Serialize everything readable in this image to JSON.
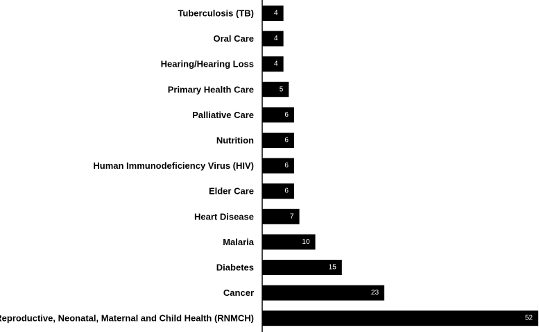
{
  "chart_data": {
    "type": "bar",
    "orientation": "horizontal",
    "categories": [
      "Tuberculosis (TB)",
      "Oral Care",
      "Hearing/Hearing Loss",
      "Primary Health Care",
      "Palliative Care",
      "Nutrition",
      "Human Immunodeficiency Virus (HIV)",
      "Elder Care",
      "Heart Disease",
      "Malaria",
      "Diabetes",
      "Cancer",
      "Reproductive, Neonatal, Maternal and Child Health (RNMCH)"
    ],
    "values": [
      4,
      4,
      4,
      5,
      6,
      6,
      6,
      6,
      7,
      10,
      15,
      23,
      52
    ],
    "xlim": [
      0,
      52
    ],
    "grid": false,
    "data_labels": true,
    "bar_color": "#000000",
    "label_color": "#ffffff"
  }
}
